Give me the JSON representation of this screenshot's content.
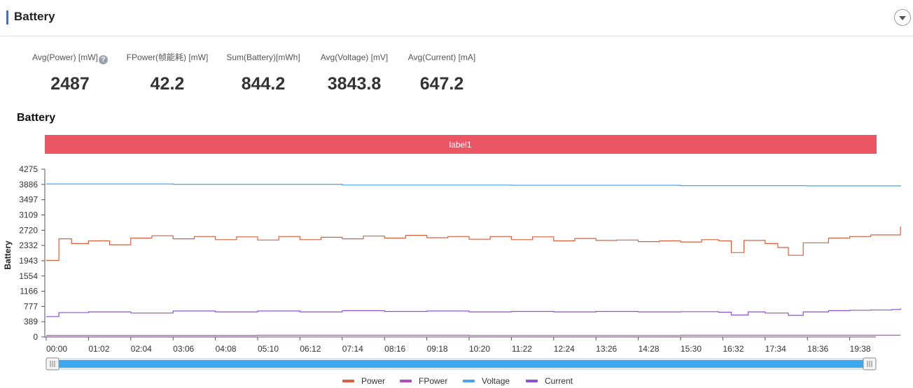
{
  "header": {
    "title": "Battery"
  },
  "metrics": [
    {
      "label": "Avg(Power) [mW]",
      "value": "2487",
      "has_help": true
    },
    {
      "label": "FPower(帧能耗) [mW]",
      "value": "42.2"
    },
    {
      "label": "Sum(Battery)[mWh]",
      "value": "844.2"
    },
    {
      "label": "Avg(Voltage) [mV]",
      "value": "3843.8"
    },
    {
      "label": "Avg(Current) [mA]",
      "value": "647.2"
    }
  ],
  "chart_title": "Battery",
  "icons": {
    "collapse": "chevron-down-icon",
    "help": "question-circle-icon",
    "slider_handle": "slider-handle-icon"
  },
  "chart_data": {
    "type": "line",
    "title": "Battery",
    "ylabel": "Battery",
    "xlabel": "",
    "band_label": "label1",
    "band_color": "#ea5664",
    "ylim": [
      0,
      4275
    ],
    "y_ticks": [
      "0",
      "389",
      "777",
      "1166",
      "1554",
      "1943",
      "2332",
      "2720",
      "3109",
      "3497",
      "3886",
      "4275"
    ],
    "x_ticks": [
      "00:00",
      "01:02",
      "02:04",
      "03:06",
      "04:08",
      "05:10",
      "06:12",
      "07:14",
      "08:16",
      "09:18",
      "10:20",
      "11:22",
      "12:24",
      "13:26",
      "14:28",
      "15:30",
      "16:32",
      "17:34",
      "18:36",
      "19:38"
    ],
    "legend_position": "bottom-center",
    "series": [
      {
        "name": "Power",
        "color": "#d9603f",
        "points": [
          [
            0,
            1950
          ],
          [
            0.3,
            2500
          ],
          [
            0.6,
            2380
          ],
          [
            1.0,
            2450
          ],
          [
            1.5,
            2350
          ],
          [
            2.0,
            2520
          ],
          [
            2.5,
            2580
          ],
          [
            3.0,
            2500
          ],
          [
            3.5,
            2560
          ],
          [
            4.0,
            2480
          ],
          [
            4.5,
            2550
          ],
          [
            5.0,
            2470
          ],
          [
            5.5,
            2560
          ],
          [
            6.0,
            2480
          ],
          [
            6.5,
            2540
          ],
          [
            7.0,
            2500
          ],
          [
            7.5,
            2570
          ],
          [
            8.0,
            2520
          ],
          [
            8.5,
            2590
          ],
          [
            9.0,
            2530
          ],
          [
            9.5,
            2560
          ],
          [
            10.0,
            2490
          ],
          [
            10.5,
            2560
          ],
          [
            11.0,
            2480
          ],
          [
            11.5,
            2550
          ],
          [
            12.0,
            2450
          ],
          [
            12.5,
            2510
          ],
          [
            13.0,
            2460
          ],
          [
            13.5,
            2470
          ],
          [
            14.0,
            2430
          ],
          [
            14.5,
            2450
          ],
          [
            15.0,
            2420
          ],
          [
            15.5,
            2480
          ],
          [
            15.9,
            2450
          ],
          [
            16.2,
            2150
          ],
          [
            16.5,
            2460
          ],
          [
            17.0,
            2380
          ],
          [
            17.3,
            2280
          ],
          [
            17.55,
            2080
          ],
          [
            17.9,
            2400
          ],
          [
            18.5,
            2520
          ],
          [
            19.0,
            2560
          ],
          [
            19.5,
            2600
          ],
          [
            20.0,
            2600
          ],
          [
            20.2,
            2820
          ]
        ]
      },
      {
        "name": "FPower",
        "color": "#b24db8",
        "points": [
          [
            0,
            38
          ],
          [
            5,
            45
          ],
          [
            10,
            40
          ],
          [
            15,
            44
          ],
          [
            20.2,
            45
          ]
        ]
      },
      {
        "name": "Voltage",
        "color": "#4aa3ef",
        "points": [
          [
            0,
            3900
          ],
          [
            3,
            3890
          ],
          [
            7,
            3870
          ],
          [
            11,
            3865
          ],
          [
            15,
            3855
          ],
          [
            18,
            3850
          ],
          [
            20.2,
            3835
          ]
        ]
      },
      {
        "name": "Current",
        "color": "#8a52d4",
        "points": [
          [
            0,
            520
          ],
          [
            0.3,
            620
          ],
          [
            1.0,
            640
          ],
          [
            2.0,
            610
          ],
          [
            3.0,
            660
          ],
          [
            4.0,
            640
          ],
          [
            5.0,
            660
          ],
          [
            6.0,
            640
          ],
          [
            7.0,
            670
          ],
          [
            8.0,
            650
          ],
          [
            9.0,
            660
          ],
          [
            10.0,
            640
          ],
          [
            11.0,
            650
          ],
          [
            12.0,
            640
          ],
          [
            13.0,
            650
          ],
          [
            14.0,
            640
          ],
          [
            15.0,
            645
          ],
          [
            15.9,
            630
          ],
          [
            16.2,
            560
          ],
          [
            16.6,
            640
          ],
          [
            17.0,
            610
          ],
          [
            17.55,
            550
          ],
          [
            17.9,
            640
          ],
          [
            18.5,
            670
          ],
          [
            19.0,
            680
          ],
          [
            19.5,
            690
          ],
          [
            20.0,
            700
          ],
          [
            20.2,
            730
          ]
        ]
      }
    ]
  }
}
